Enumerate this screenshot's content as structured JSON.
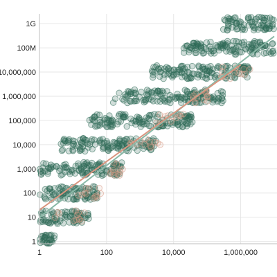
{
  "chart_data": {
    "type": "scatter",
    "title": "",
    "xlabel": "",
    "ylabel": "",
    "x_scale": "log",
    "y_scale": "log",
    "xlim": [
      1,
      10000000
    ],
    "ylim": [
      0.8,
      1500000000
    ],
    "x_ticks": [
      {
        "value": 1,
        "label": "1"
      },
      {
        "value": 100,
        "label": "100"
      },
      {
        "value": 10000,
        "label": "10,000"
      },
      {
        "value": 1000000,
        "label": "1,000,000"
      }
    ],
    "y_ticks": [
      {
        "value": 1,
        "label": "1"
      },
      {
        "value": 10,
        "label": "10"
      },
      {
        "value": 100,
        "label": "100"
      },
      {
        "value": 1000,
        "label": "1,000"
      },
      {
        "value": 10000,
        "label": "10,000"
      },
      {
        "value": 100000,
        "label": "100,000"
      },
      {
        "value": 1000000,
        "label": "1,000,000"
      },
      {
        "value": 10000000,
        "label": "10,000,000"
      },
      {
        "value": 100000000,
        "label": "100M"
      },
      {
        "value": 1000000000,
        "label": "1G"
      }
    ],
    "grid": true,
    "legend": "none",
    "series": [
      {
        "color": "#2f6b58",
        "clusters": [
          {
            "y": 1,
            "x_range": [
              1,
              3
            ]
          },
          {
            "y": 10,
            "x_range": [
              1,
              30
            ]
          },
          {
            "y": 100,
            "x_range": [
              1,
              60
            ]
          },
          {
            "y": 1000,
            "x_range": [
              1,
              300
            ]
          },
          {
            "y": 10000,
            "x_range": [
              4,
              3000
            ]
          },
          {
            "y": 100000,
            "x_range": [
              30,
              40000
            ]
          },
          {
            "y": 1000000,
            "x_range": [
              150,
              300000
            ]
          },
          {
            "y": 10000000,
            "x_range": [
              2000,
              2000000
            ]
          },
          {
            "y": 100000000,
            "x_range": [
              20000,
              10000000
            ]
          },
          {
            "y": 1000000000,
            "x_range": [
              300000,
              10000000
            ]
          }
        ],
        "fit_line": {
          "color": "#8ab9a7",
          "points": [
            [
              1,
              10
            ],
            [
              10000000,
              300000000
            ]
          ]
        }
      },
      {
        "color": "#d79a86",
        "clusters": [
          {
            "y": 10,
            "x_range": [
              2,
              30
            ]
          },
          {
            "y": 100,
            "x_range": [
              10,
              70
            ]
          },
          {
            "y": 1000,
            "x_range": [
              80,
              400
            ]
          },
          {
            "y": 10000,
            "x_range": [
              500,
              4000
            ]
          },
          {
            "y": 100000,
            "x_range": [
              3000,
              30000
            ]
          },
          {
            "y": 1000000,
            "x_range": [
              20000,
              200000
            ]
          },
          {
            "y": 10000000,
            "x_range": [
              200000,
              2000000
            ]
          }
        ],
        "fit_line": {
          "color": "#d9957f",
          "points": [
            [
              1,
              20
            ],
            [
              1000000,
              20000000
            ]
          ]
        }
      }
    ]
  }
}
